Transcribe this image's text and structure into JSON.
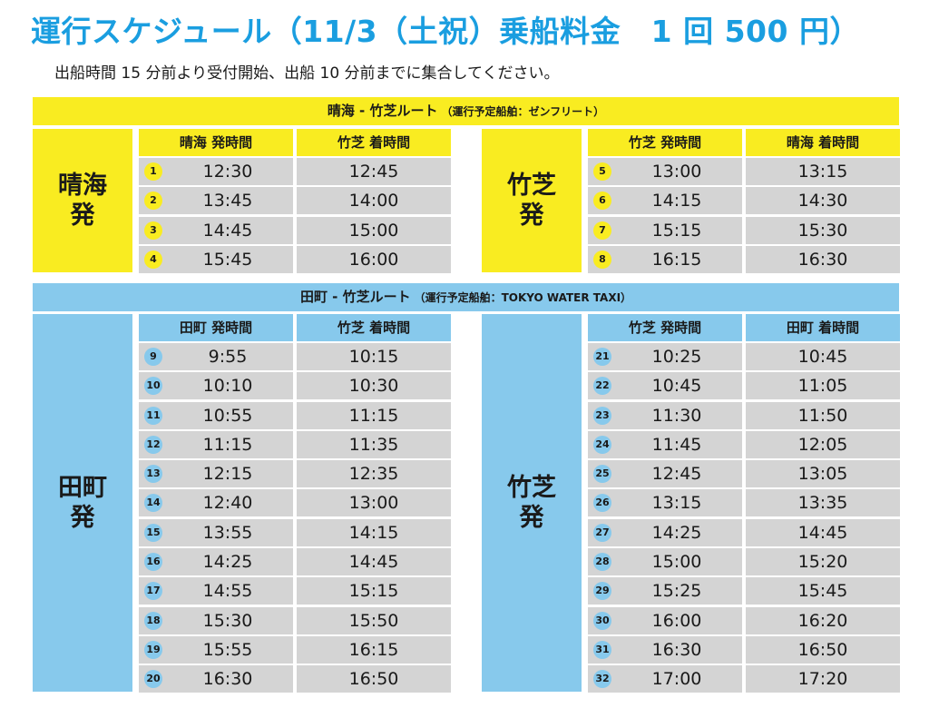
{
  "title": "運行スケジュール（11/3（土祝）乗船料金　1 回 500 円）",
  "subtitle": "出船時間 15 分前より受付開始、出船 10 分前までに集合してください。",
  "routes": [
    {
      "name": "晴海 - 竹芝ルート",
      "vessel_note": "（運行予定船舶：ゼンフリート）",
      "color": "#f9ec21",
      "blocks": [
        {
          "side_label": "晴海発",
          "col_dep": "晴海 発時間",
          "col_arr": "竹芝 着時間",
          "trips": [
            {
              "no": "1",
              "dep": "12:30",
              "arr": "12:45"
            },
            {
              "no": "2",
              "dep": "13:45",
              "arr": "14:00"
            },
            {
              "no": "3",
              "dep": "14:45",
              "arr": "15:00"
            },
            {
              "no": "4",
              "dep": "15:45",
              "arr": "16:00"
            }
          ]
        },
        {
          "side_label": "竹芝発",
          "col_dep": "竹芝 発時間",
          "col_arr": "晴海 着時間",
          "trips": [
            {
              "no": "5",
              "dep": "13:00",
              "arr": "13:15"
            },
            {
              "no": "6",
              "dep": "14:15",
              "arr": "14:30"
            },
            {
              "no": "7",
              "dep": "15:15",
              "arr": "15:30"
            },
            {
              "no": "8",
              "dep": "16:15",
              "arr": "16:30"
            }
          ]
        }
      ]
    },
    {
      "name": "田町 - 竹芝ルート",
      "vessel_note": "（運行予定船舶：TOKYO WATER TAXI）",
      "color": "#87c9ec",
      "blocks": [
        {
          "side_label": "田町発",
          "col_dep": "田町 発時間",
          "col_arr": "竹芝 着時間",
          "trips": [
            {
              "no": "9",
              "dep": "9:55",
              "arr": "10:15"
            },
            {
              "no": "10",
              "dep": "10:10",
              "arr": "10:30"
            },
            {
              "no": "11",
              "dep": "10:55",
              "arr": "11:15"
            },
            {
              "no": "12",
              "dep": "11:15",
              "arr": "11:35"
            },
            {
              "no": "13",
              "dep": "12:15",
              "arr": "12:35"
            },
            {
              "no": "14",
              "dep": "12:40",
              "arr": "13:00"
            },
            {
              "no": "15",
              "dep": "13:55",
              "arr": "14:15"
            },
            {
              "no": "16",
              "dep": "14:25",
              "arr": "14:45"
            },
            {
              "no": "17",
              "dep": "14:55",
              "arr": "15:15"
            },
            {
              "no": "18",
              "dep": "15:30",
              "arr": "15:50"
            },
            {
              "no": "19",
              "dep": "15:55",
              "arr": "16:15"
            },
            {
              "no": "20",
              "dep": "16:30",
              "arr": "16:50"
            }
          ]
        },
        {
          "side_label": "竹芝発",
          "col_dep": "竹芝 発時間",
          "col_arr": "田町 着時間",
          "trips": [
            {
              "no": "21",
              "dep": "10:25",
              "arr": "10:45"
            },
            {
              "no": "22",
              "dep": "10:45",
              "arr": "11:05"
            },
            {
              "no": "23",
              "dep": "11:30",
              "arr": "11:50"
            },
            {
              "no": "24",
              "dep": "11:45",
              "arr": "12:05"
            },
            {
              "no": "25",
              "dep": "12:45",
              "arr": "13:05"
            },
            {
              "no": "26",
              "dep": "13:15",
              "arr": "13:35"
            },
            {
              "no": "27",
              "dep": "14:25",
              "arr": "14:45"
            },
            {
              "no": "28",
              "dep": "15:00",
              "arr": "15:20"
            },
            {
              "no": "29",
              "dep": "15:25",
              "arr": "15:45"
            },
            {
              "no": "30",
              "dep": "16:00",
              "arr": "16:20"
            },
            {
              "no": "31",
              "dep": "16:30",
              "arr": "16:50"
            },
            {
              "no": "32",
              "dep": "17:00",
              "arr": "17:20"
            }
          ]
        }
      ]
    }
  ]
}
